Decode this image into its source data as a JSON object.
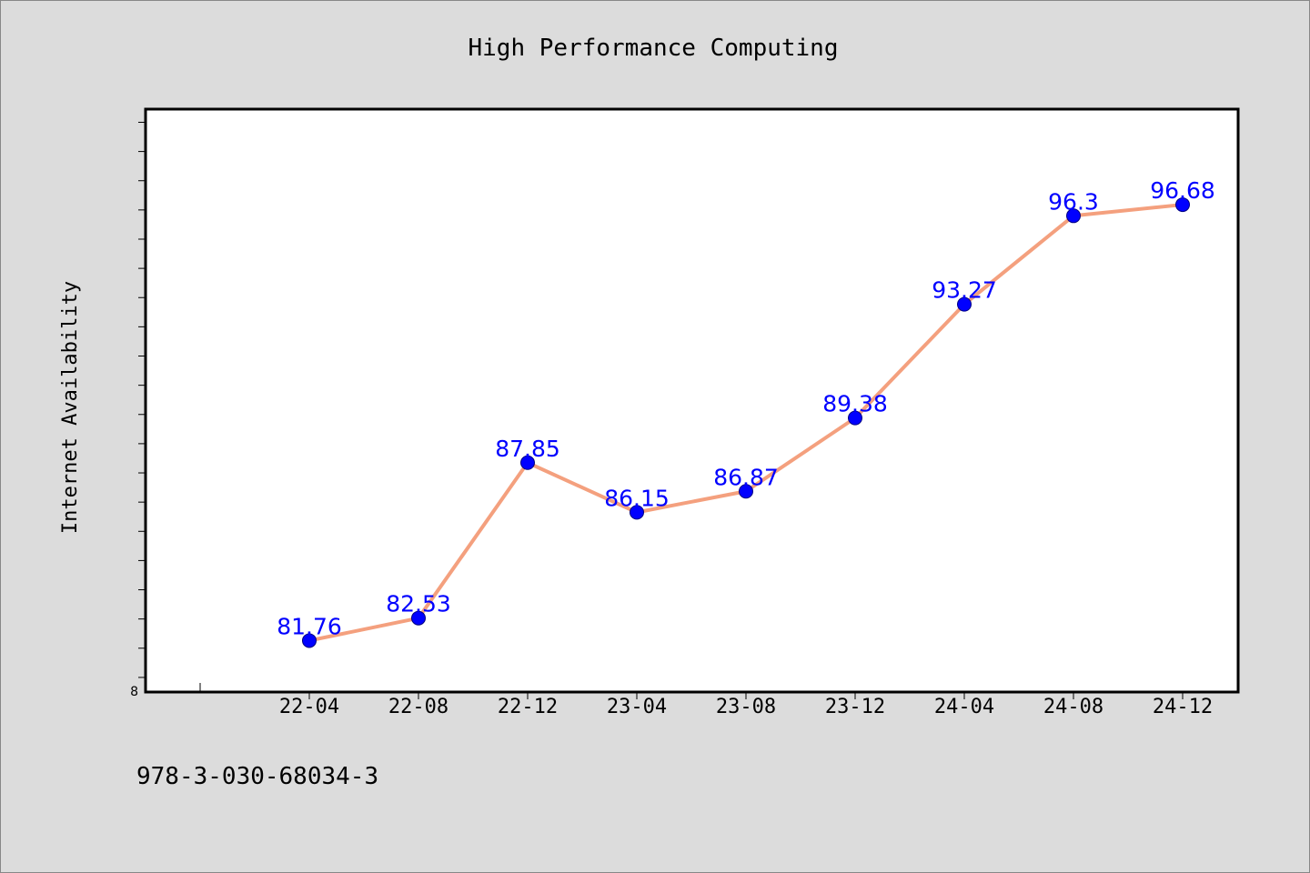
{
  "chart_data": {
    "type": "line",
    "title": "High Performance Computing",
    "xlabel": "",
    "ylabel": "Internet Availability",
    "categories": [
      "22-04",
      "22-08",
      "22-12",
      "23-04",
      "23-08",
      "23-12",
      "24-04",
      "24-08",
      "24-12"
    ],
    "series": [
      {
        "values": [
          81.76,
          82.53,
          87.85,
          86.15,
          86.87,
          89.38,
          93.27,
          96.3,
          96.68
        ],
        "data_labels": [
          "81.76",
          "82.53",
          "87.85",
          "86.15",
          "86.87",
          "89.38",
          "93.27",
          "96.3",
          "96.68"
        ],
        "line_color": "#f4a07e",
        "marker_color": "#0000ff",
        "label_color": "#0000ff"
      }
    ],
    "y_tick_label": "8",
    "ylim": [
      80,
      100
    ],
    "grid": false,
    "legend": "none"
  },
  "footnote": "978-3-030-68034-3",
  "colors": {
    "background": "#dcdcdc",
    "plot_background": "#ffffff",
    "axis": "#000000"
  }
}
